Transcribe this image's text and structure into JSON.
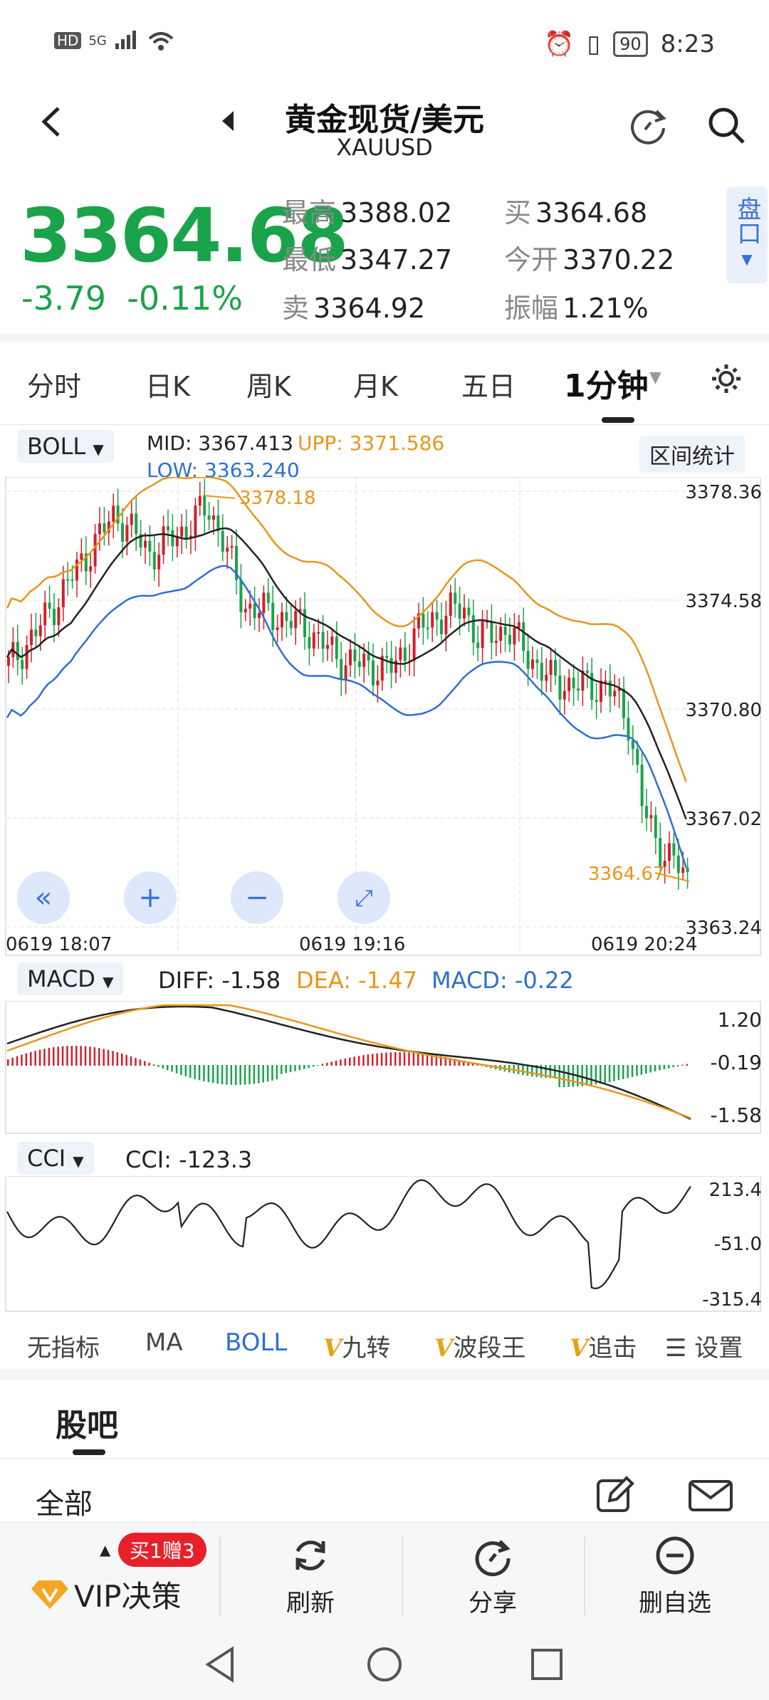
{
  "status_bar": {
    "left_icons": [
      "HD",
      "5G",
      "signal-icon",
      "wifi-icon"
    ],
    "time": "8:23",
    "battery": "90"
  },
  "header": {
    "title": "黄金现货/美元",
    "subtitle": "XAUUSD"
  },
  "quote": {
    "price": "3364.68",
    "change": "-3.79",
    "change_pct": "-0.11%",
    "high_label": "最高",
    "high": "3388.02",
    "low_label": "最低",
    "low": "3347.27",
    "sell_label": "卖",
    "sell": "3364.92",
    "buy_label": "买",
    "buy": "3364.68",
    "open_label": "今开",
    "open": "3370.22",
    "amp_label": "振幅",
    "amp": "1.21%",
    "pankou": "盘口"
  },
  "tabs": [
    {
      "label": "分时"
    },
    {
      "label": "日K"
    },
    {
      "label": "周K"
    },
    {
      "label": "月K"
    },
    {
      "label": "五日"
    },
    {
      "label": "1分钟"
    }
  ],
  "boll": {
    "chip": "BOLL",
    "mid_label": "MID:",
    "mid": "3367.413",
    "upp_label": "UPP:",
    "upp": "3371.586",
    "low_label": "LOW:",
    "low": "3363.240",
    "range_btn": "区间统计",
    "high_mark": "3378.18",
    "last_mark": "3364.67",
    "y_ticks": [
      "3378.36",
      "3374.58",
      "3370.80",
      "3367.02",
      "3363.24"
    ],
    "x_ticks": [
      "0619  18:07",
      "0619  19:16",
      "0619  20:24"
    ]
  },
  "macd": {
    "chip": "MACD",
    "diff": "DIFF: -1.58",
    "dea": "DEA: -1.47",
    "macd": "MACD: -0.22",
    "y_ticks": [
      "1.20",
      "-0.19",
      "-1.58"
    ]
  },
  "cci": {
    "chip": "CCI",
    "value": "CCI: -123.3",
    "y_ticks": [
      "213.4",
      "-51.0",
      "-315.4"
    ]
  },
  "indicator_tabs": {
    "none": "无指标",
    "ma": "MA",
    "boll": "BOLL",
    "jiuzhuan": "九转",
    "boduan": "波段王",
    "zhuiji": "追击",
    "settings": "设置"
  },
  "guba": {
    "title": "股吧",
    "all": "全部"
  },
  "bottom": {
    "vip": "VIP决策",
    "vip_badge": "买1赠3",
    "refresh": "刷新",
    "share": "分享",
    "remove": "删自选"
  },
  "colors": {
    "up": "#d0202a",
    "down": "#1aa34a",
    "upp": "#e8961a",
    "low": "#2e6fd0",
    "mid": "#222222",
    "accent": "#3a72d8"
  }
}
